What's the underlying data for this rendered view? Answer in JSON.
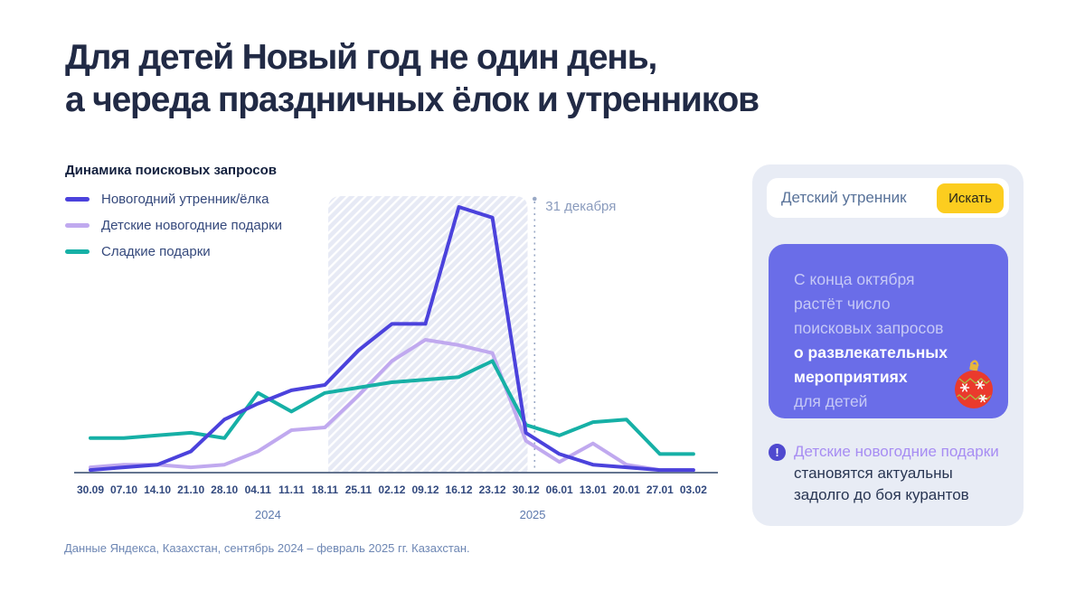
{
  "title": {
    "line1": "Для детей Новый год не один день,",
    "line2": "а череда праздничных ёлок и утренников"
  },
  "chart": {
    "label": "Динамика поисковых запросов"
  },
  "chart_data": {
    "type": "line",
    "title": "Динамика поисковых запросов",
    "x": [
      "30.09",
      "07.10",
      "14.10",
      "21.10",
      "28.10",
      "04.11",
      "11.11",
      "18.11",
      "25.11",
      "02.12",
      "09.12",
      "16.12",
      "23.12",
      "30.12",
      "06.01",
      "13.01",
      "20.01",
      "27.01",
      "03.02"
    ],
    "series": [
      {
        "name": "Новогодний утренник/ёлка",
        "color": "#4b42dc",
        "values": [
          1,
          2,
          3,
          8,
          20,
          26,
          31,
          33,
          46,
          56,
          56,
          100,
          96,
          15,
          7,
          3,
          2,
          1,
          1
        ]
      },
      {
        "name": "Детские новогодние подарки",
        "color": "#c0a9ef",
        "values": [
          2,
          3,
          3,
          2,
          3,
          8,
          16,
          17,
          29,
          42,
          50,
          48,
          45,
          12,
          4,
          11,
          3,
          1,
          1
        ]
      },
      {
        "name": "Сладкие подарки",
        "color": "#16b0a6",
        "values": [
          13,
          13,
          14,
          15,
          13,
          30,
          23,
          30,
          32,
          34,
          35,
          36,
          42,
          18,
          14,
          19,
          20,
          7,
          7
        ]
      }
    ],
    "ylim": [
      0,
      100
    ],
    "grid": false,
    "legend_position": "top-left",
    "highlight_band": {
      "start_label": "18.11",
      "end_label": "30.12",
      "start_index": 7.1,
      "end_index": 13.05
    },
    "marker_line": {
      "label": "31 декабря",
      "index": 13.26
    },
    "year_labels": [
      {
        "label": "2024",
        "index": 5.3
      },
      {
        "label": "2025",
        "index": 13.2
      }
    ],
    "axis_color": "#64748f",
    "tick_color": "#32497e",
    "year_color": "#5d79ad",
    "marker_color": "#9aa9c6",
    "marker_label_color": "#8a9bbd"
  },
  "footer": {
    "source": "Данные Яндекса, Казахстан, сентябрь 2024 – февраль 2025 гг. Казахстан."
  },
  "panel": {
    "search": {
      "query": "Детский утренник",
      "button": "Искать",
      "button_color": "#fccd1f"
    },
    "card": {
      "bg": "#6a6de8",
      "lines": [
        {
          "text": "С конца октября",
          "bold": false
        },
        {
          "text": "растёт число",
          "bold": false
        },
        {
          "text": "поисковых запросов",
          "bold": false
        },
        {
          "text": "о развлекательных",
          "bold": true
        },
        {
          "text": "мероприятиях",
          "bold": true
        },
        {
          "text": "для детей",
          "bold": false
        }
      ],
      "ornament_icon": "christmas-ball-icon"
    },
    "note": {
      "icon": "exclamation-icon",
      "highlight": "Детские новогодние подарки",
      "line2": "становятся актуальны",
      "line3": "задолго до боя курантов",
      "highlight_color": "#a78df3"
    }
  }
}
